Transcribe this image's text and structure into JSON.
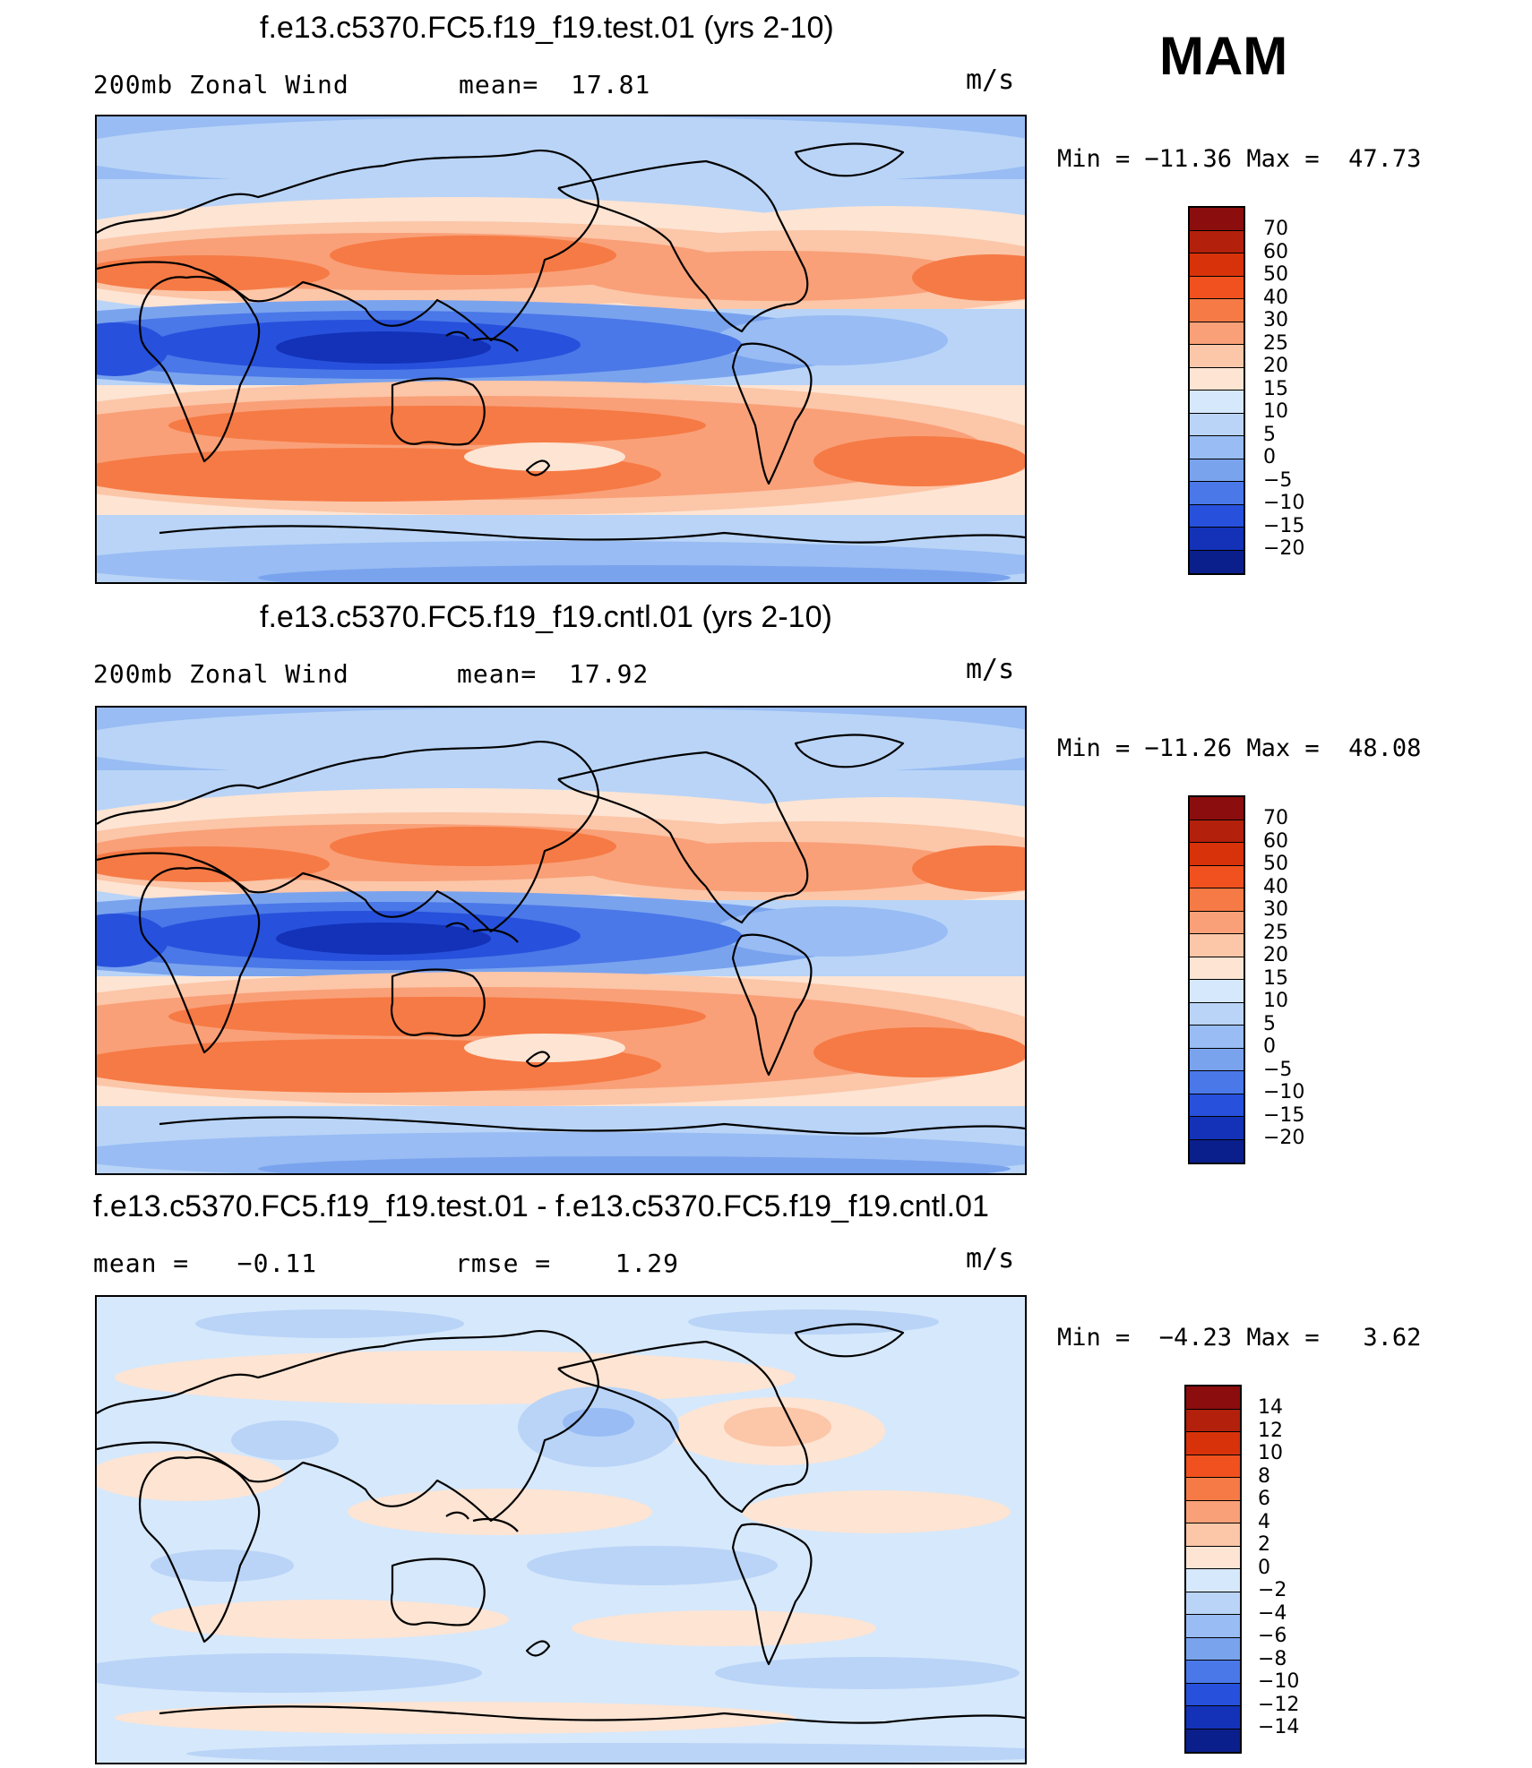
{
  "season": "MAM",
  "units_label": "m/s",
  "panels": [
    {
      "title": "f.e13.c5370.FC5.f19_f19.test.01 (yrs 2-10)",
      "sub_left": "200mb Zonal Wind",
      "sub_mid": "mean=  17.81",
      "units": "m/s",
      "minmax": "Min = −11.36 Max =  47.73",
      "colorbar_labels": [
        "70",
        "60",
        "50",
        "40",
        "30",
        "25",
        "20",
        "15",
        "10",
        "5",
        "0",
        "−5",
        "−10",
        "−15",
        "−20"
      ],
      "colorbar_colors": [
        "#8b0d0d",
        "#b3200b",
        "#d8320a",
        "#f0511e",
        "#f67a45",
        "#f9a078",
        "#fcc6a8",
        "#fde4d3",
        "#d6e8fb",
        "#b9d4f7",
        "#98bcf3",
        "#7aa3ee",
        "#4a78e8",
        "#2751dc",
        "#1332b8",
        "#0b1f8c"
      ]
    },
    {
      "title": "f.e13.c5370.FC5.f19_f19.cntl.01 (yrs 2-10)",
      "sub_left": "200mb Zonal Wind",
      "sub_mid": "mean=  17.92",
      "units": "m/s",
      "minmax": "Min = −11.26 Max =  48.08",
      "colorbar_labels": [
        "70",
        "60",
        "50",
        "40",
        "30",
        "25",
        "20",
        "15",
        "10",
        "5",
        "0",
        "−5",
        "−10",
        "−15",
        "−20"
      ],
      "colorbar_colors": [
        "#8b0d0d",
        "#b3200b",
        "#d8320a",
        "#f0511e",
        "#f67a45",
        "#f9a078",
        "#fcc6a8",
        "#fde4d3",
        "#d6e8fb",
        "#b9d4f7",
        "#98bcf3",
        "#7aa3ee",
        "#4a78e8",
        "#2751dc",
        "#1332b8",
        "#0b1f8c"
      ]
    },
    {
      "title": "f.e13.c5370.FC5.f19_f19.test.01 - f.e13.c5370.FC5.f19_f19.cntl.01",
      "sub_left": "mean =   −0.11",
      "sub_mid": "rmse =    1.29",
      "units": "m/s",
      "minmax": "Min =  −4.23 Max =   3.62",
      "colorbar_labels": [
        "14",
        "12",
        "10",
        "8",
        "6",
        "4",
        "2",
        "0",
        "−2",
        "−4",
        "−6",
        "−8",
        "−10",
        "−12",
        "−14"
      ],
      "colorbar_colors": [
        "#8b0d0d",
        "#b3200b",
        "#d8320a",
        "#f0511e",
        "#f67a45",
        "#f9a078",
        "#fcc6a8",
        "#fde4d3",
        "#d6e8fb",
        "#b9d4f7",
        "#98bcf3",
        "#7aa3ee",
        "#4a78e8",
        "#2751dc",
        "#1332b8",
        "#0b1f8c"
      ]
    }
  ]
}
